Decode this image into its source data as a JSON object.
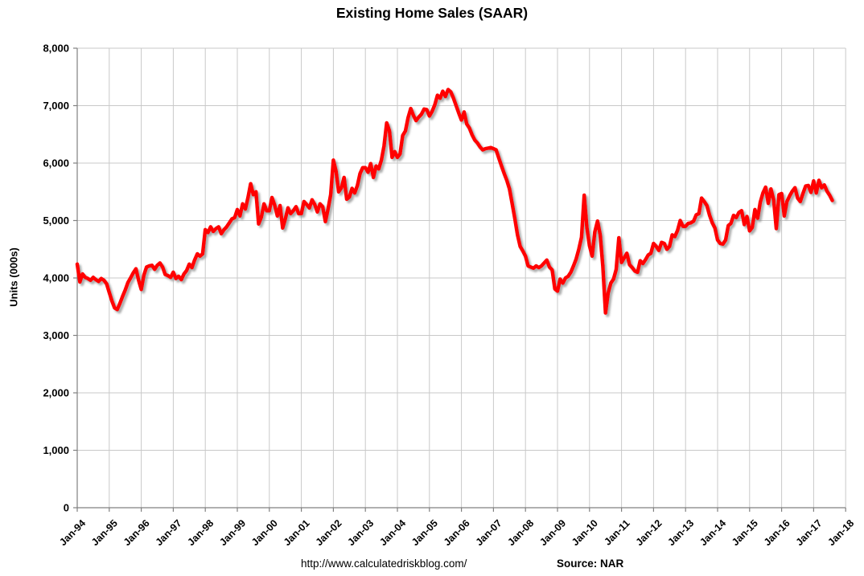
{
  "chart_data": {
    "type": "line",
    "title": "Existing Home Sales (SAAR)",
    "ylabel": "Units (000s)",
    "xlabel": "",
    "legend": "none",
    "grid": true,
    "line_color": "#FF0000",
    "grid_color": "#c9c9c9",
    "axis_color": "#808080",
    "ylim": [
      0,
      8000
    ],
    "y_tick_step": 1000,
    "y_tick_labels": [
      "0",
      "1,000",
      "2,000",
      "3,000",
      "4,000",
      "5,000",
      "6,000",
      "7,000",
      "8,000"
    ],
    "x_tick_labels": [
      "Jan-94",
      "Jan-95",
      "Jan-96",
      "Jan-97",
      "Jan-98",
      "Jan-99",
      "Jan-00",
      "Jan-01",
      "Jan-02",
      "Jan-03",
      "Jan-04",
      "Jan-05",
      "Jan-06",
      "Jan-07",
      "Jan-08",
      "Jan-09",
      "Jan-10",
      "Jan-11",
      "Jan-12",
      "Jan-13",
      "Jan-14",
      "Jan-15",
      "Jan-16",
      "Jan-17",
      "Jan-18"
    ],
    "series": [
      {
        "name": "Existing Home Sales (SAAR, thousands)",
        "frequency": "monthly",
        "start": "Jan-94",
        "end": "Aug-17",
        "values": [
          4240,
          3930,
          4070,
          4010,
          3990,
          3960,
          4010,
          3970,
          3940,
          3990,
          3960,
          3900,
          3750,
          3600,
          3480,
          3450,
          3560,
          3680,
          3790,
          3920,
          4000,
          4090,
          4160,
          3960,
          3800,
          4050,
          4190,
          4210,
          4220,
          4150,
          4220,
          4260,
          4190,
          4060,
          4040,
          4010,
          4100,
          3990,
          4030,
          3970,
          4070,
          4130,
          4240,
          4180,
          4310,
          4420,
          4380,
          4420,
          4840,
          4790,
          4890,
          4810,
          4860,
          4890,
          4770,
          4840,
          4890,
          4960,
          5030,
          5050,
          5190,
          5080,
          5290,
          5200,
          5400,
          5640,
          5450,
          5500,
          4940,
          5060,
          5290,
          5170,
          5170,
          5400,
          5270,
          5080,
          5260,
          4870,
          5030,
          5220,
          5120,
          5170,
          5240,
          5120,
          5120,
          5330,
          5280,
          5220,
          5360,
          5280,
          5150,
          5290,
          5240,
          4980,
          5200,
          5450,
          6050,
          5860,
          5500,
          5570,
          5750,
          5370,
          5410,
          5560,
          5480,
          5610,
          5820,
          5920,
          5920,
          5840,
          5990,
          5750,
          5950,
          5900,
          6050,
          6300,
          6700,
          6560,
          6100,
          6200,
          6100,
          6160,
          6480,
          6560,
          6790,
          6950,
          6830,
          6740,
          6800,
          6850,
          6940,
          6930,
          6820,
          6900,
          7010,
          7180,
          7130,
          7250,
          7160,
          7280,
          7240,
          7130,
          7000,
          6870,
          6750,
          6890,
          6680,
          6610,
          6490,
          6400,
          6350,
          6280,
          6230,
          6250,
          6260,
          6270,
          6250,
          6230,
          6090,
          5950,
          5820,
          5700,
          5550,
          5300,
          5040,
          4750,
          4550,
          4470,
          4380,
          4210,
          4190,
          4170,
          4210,
          4180,
          4210,
          4260,
          4310,
          4190,
          4140,
          3810,
          3770,
          3980,
          3910,
          4000,
          4030,
          4100,
          4210,
          4330,
          4500,
          4710,
          5440,
          4880,
          4560,
          4380,
          4800,
          4990,
          4750,
          4200,
          3390,
          3740,
          3910,
          3980,
          4150,
          4700,
          4270,
          4350,
          4430,
          4230,
          4180,
          4120,
          4100,
          4300,
          4250,
          4320,
          4400,
          4430,
          4600,
          4550,
          4480,
          4620,
          4600,
          4500,
          4550,
          4750,
          4720,
          4830,
          5000,
          4900,
          4900,
          4950,
          4960,
          4990,
          5100,
          5120,
          5390,
          5330,
          5260,
          5090,
          4960,
          4870,
          4660,
          4600,
          4590,
          4660,
          4910,
          4950,
          5090,
          5050,
          5140,
          5170,
          4930,
          5070,
          4820,
          4880,
          5190,
          5040,
          5320,
          5480,
          5580,
          5300,
          5550,
          5360,
          4860,
          5450,
          5470,
          5080,
          5330,
          5430,
          5510,
          5570,
          5390,
          5330,
          5470,
          5600,
          5610,
          5490,
          5690,
          5480,
          5700,
          5570,
          5620,
          5510,
          5440,
          5350
        ]
      }
    ]
  },
  "footer": {
    "url_text": "http://www.calculatedriskblog.com/",
    "source_label": "Source: NAR"
  }
}
